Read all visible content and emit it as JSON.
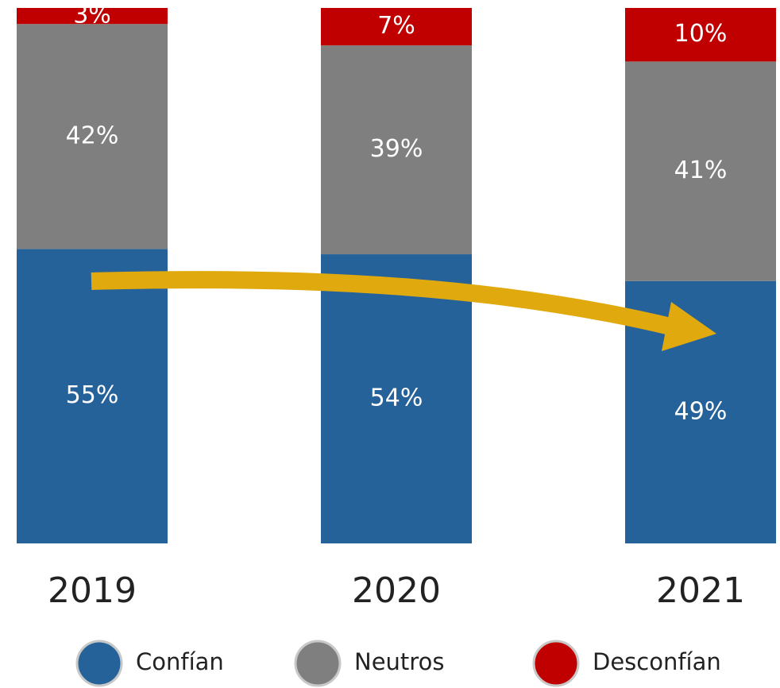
{
  "chart_data": {
    "type": "stacked_bar",
    "categories": [
      "2019",
      "2020",
      "2021"
    ],
    "series": [
      {
        "name": "Confían",
        "color": "#26629a",
        "values": [
          55,
          54,
          49
        ],
        "value_labels": [
          "55%",
          "54%",
          "49%"
        ]
      },
      {
        "name": "Neutros",
        "color": "#7f7f7f",
        "values": [
          42,
          39,
          41
        ],
        "value_labels": [
          "42%",
          "39%",
          "41%"
        ]
      },
      {
        "name": "Desconfían",
        "color": "#c00000",
        "values": [
          3,
          7,
          10
        ],
        "value_labels": [
          "3%",
          "7%",
          "10%"
        ]
      }
    ],
    "legend": "bottom"
  }
}
